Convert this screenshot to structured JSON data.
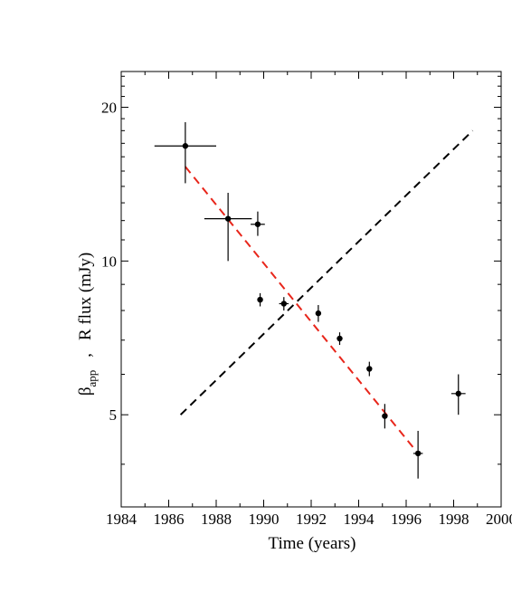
{
  "chart_data": {
    "type": "scatter",
    "title": "",
    "xlabel": "Time  (years)",
    "ylabel": {
      "beta_symbol": "β",
      "beta_subscript": "app",
      "separator": ",",
      "rest": "R flux (mJy)"
    },
    "xlim": [
      1984,
      2000
    ],
    "ylim": [
      3.3,
      23.5
    ],
    "yscale": "log",
    "xticks": [
      1984,
      1986,
      1988,
      1990,
      1992,
      1994,
      1996,
      1998,
      2000
    ],
    "yticks": [
      5,
      10,
      20
    ],
    "grid": false,
    "series": [
      {
        "marker": "circle",
        "color": "#000000",
        "points": [
          {
            "x": 1986.7,
            "y": 16.8,
            "xerr": 1.3,
            "ylo": 14.2,
            "yhi": 18.7
          },
          {
            "x": 1988.5,
            "y": 12.1,
            "xerr": 1.0,
            "ylo": 10.0,
            "yhi": 13.6
          },
          {
            "x": 1989.75,
            "y": 11.8,
            "xerr": 0.3,
            "ylo": 11.2,
            "yhi": 12.5
          },
          {
            "x": 1989.85,
            "y": 8.4,
            "xerr": 0.1,
            "ylo": 8.15,
            "yhi": 8.65
          },
          {
            "x": 1990.85,
            "y": 8.25,
            "xerr": 0.2,
            "ylo": 8.0,
            "yhi": 8.5
          },
          {
            "x": 1992.3,
            "y": 7.9,
            "xerr": 0.1,
            "ylo": 7.6,
            "yhi": 8.2
          },
          {
            "x": 1993.2,
            "y": 7.05,
            "xerr": 0.1,
            "ylo": 6.85,
            "yhi": 7.25
          },
          {
            "x": 1994.45,
            "y": 6.15,
            "xerr": 0.1,
            "ylo": 5.95,
            "yhi": 6.35
          },
          {
            "x": 1995.1,
            "y": 4.97,
            "xerr": 0.1,
            "ylo": 4.7,
            "yhi": 5.25
          },
          {
            "x": 1996.5,
            "y": 4.2,
            "xerr": 0.2,
            "ylo": 3.75,
            "yhi": 4.65
          },
          {
            "x": 1998.2,
            "y": 5.5,
            "xerr": 0.3,
            "ylo": 5.0,
            "yhi": 6.0
          }
        ]
      }
    ],
    "lines": [
      {
        "style": "dashed",
        "color": "#000000",
        "x": [
          1986.5,
          1998.8
        ],
        "y": [
          5.0,
          18.0
        ]
      },
      {
        "style": "dashed",
        "color": "#e8261b",
        "x": [
          1986.7,
          1996.5
        ],
        "y": [
          15.3,
          4.2
        ]
      }
    ]
  }
}
